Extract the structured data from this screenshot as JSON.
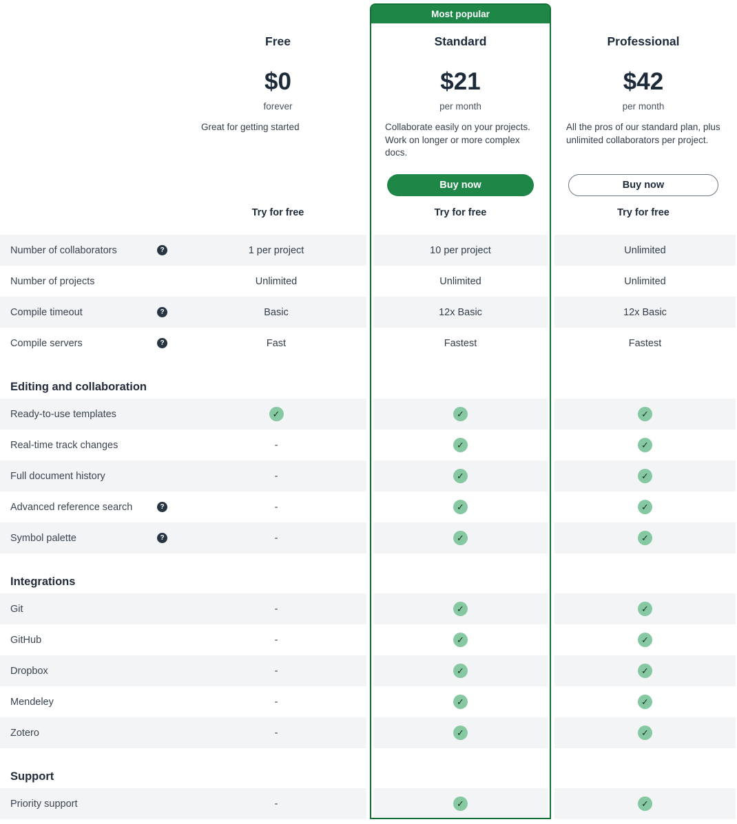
{
  "colors": {
    "accent_green": "#1e8747",
    "frame_green": "#0e7032",
    "check_circle": "#85c8a2",
    "check_mark": "#173220",
    "help_circle": "#273442",
    "row_alt_bg": "#f3f4f6",
    "heading_text": "#1c2a39",
    "body_text": "#333e4a"
  },
  "plans": [
    {
      "name": "Free",
      "price": "$0",
      "period": "forever",
      "description": "Great for getting started",
      "try_label": "Try for free"
    },
    {
      "name": "Standard",
      "badge": "Most popular",
      "price": "$21",
      "period": "per month",
      "description": "Collaborate easily on your projects. Work on longer or more complex docs.",
      "buy_label": "Buy now",
      "try_label": "Try for free"
    },
    {
      "name": "Professional",
      "price": "$42",
      "period": "per month",
      "description": "All the pros of our standard plan, plus unlimited collaborators per project.",
      "buy_label": "Buy now",
      "try_label": "Try for free"
    }
  ],
  "table": {
    "check_symbol": "✓",
    "help_symbol": "?",
    "sections": [
      {
        "header": "",
        "rows": [
          {
            "label": "Number of collaborators",
            "help": true,
            "values": [
              "1 per project",
              "10 per project",
              "Unlimited"
            ]
          },
          {
            "label": "Number of projects",
            "help": false,
            "values": [
              "Unlimited",
              "Unlimited",
              "Unlimited"
            ]
          },
          {
            "label": "Compile timeout",
            "help": true,
            "values": [
              "Basic",
              "12x Basic",
              "12x Basic"
            ]
          },
          {
            "label": "Compile servers",
            "help": true,
            "values": [
              "Fast",
              "Fastest",
              "Fastest"
            ]
          }
        ]
      },
      {
        "header": "Editing and collaboration",
        "rows": [
          {
            "label": "Ready-to-use templates",
            "help": false,
            "values": [
              "CHECK",
              "CHECK",
              "CHECK"
            ]
          },
          {
            "label": "Real-time track changes",
            "help": false,
            "values": [
              "-",
              "CHECK",
              "CHECK"
            ]
          },
          {
            "label": "Full document history",
            "help": false,
            "values": [
              "-",
              "CHECK",
              "CHECK"
            ]
          },
          {
            "label": "Advanced reference search",
            "help": true,
            "values": [
              "-",
              "CHECK",
              "CHECK"
            ]
          },
          {
            "label": "Symbol palette",
            "help": true,
            "values": [
              "-",
              "CHECK",
              "CHECK"
            ]
          }
        ]
      },
      {
        "header": "Integrations",
        "rows": [
          {
            "label": "Git",
            "help": false,
            "values": [
              "-",
              "CHECK",
              "CHECK"
            ]
          },
          {
            "label": "GitHub",
            "help": false,
            "values": [
              "-",
              "CHECK",
              "CHECK"
            ]
          },
          {
            "label": "Dropbox",
            "help": false,
            "values": [
              "-",
              "CHECK",
              "CHECK"
            ]
          },
          {
            "label": "Mendeley",
            "help": false,
            "values": [
              "-",
              "CHECK",
              "CHECK"
            ]
          },
          {
            "label": "Zotero",
            "help": false,
            "values": [
              "-",
              "CHECK",
              "CHECK"
            ]
          }
        ]
      },
      {
        "header": "Support",
        "rows": [
          {
            "label": "Priority support",
            "help": false,
            "values": [
              "-",
              "CHECK",
              "CHECK"
            ]
          }
        ]
      }
    ]
  }
}
